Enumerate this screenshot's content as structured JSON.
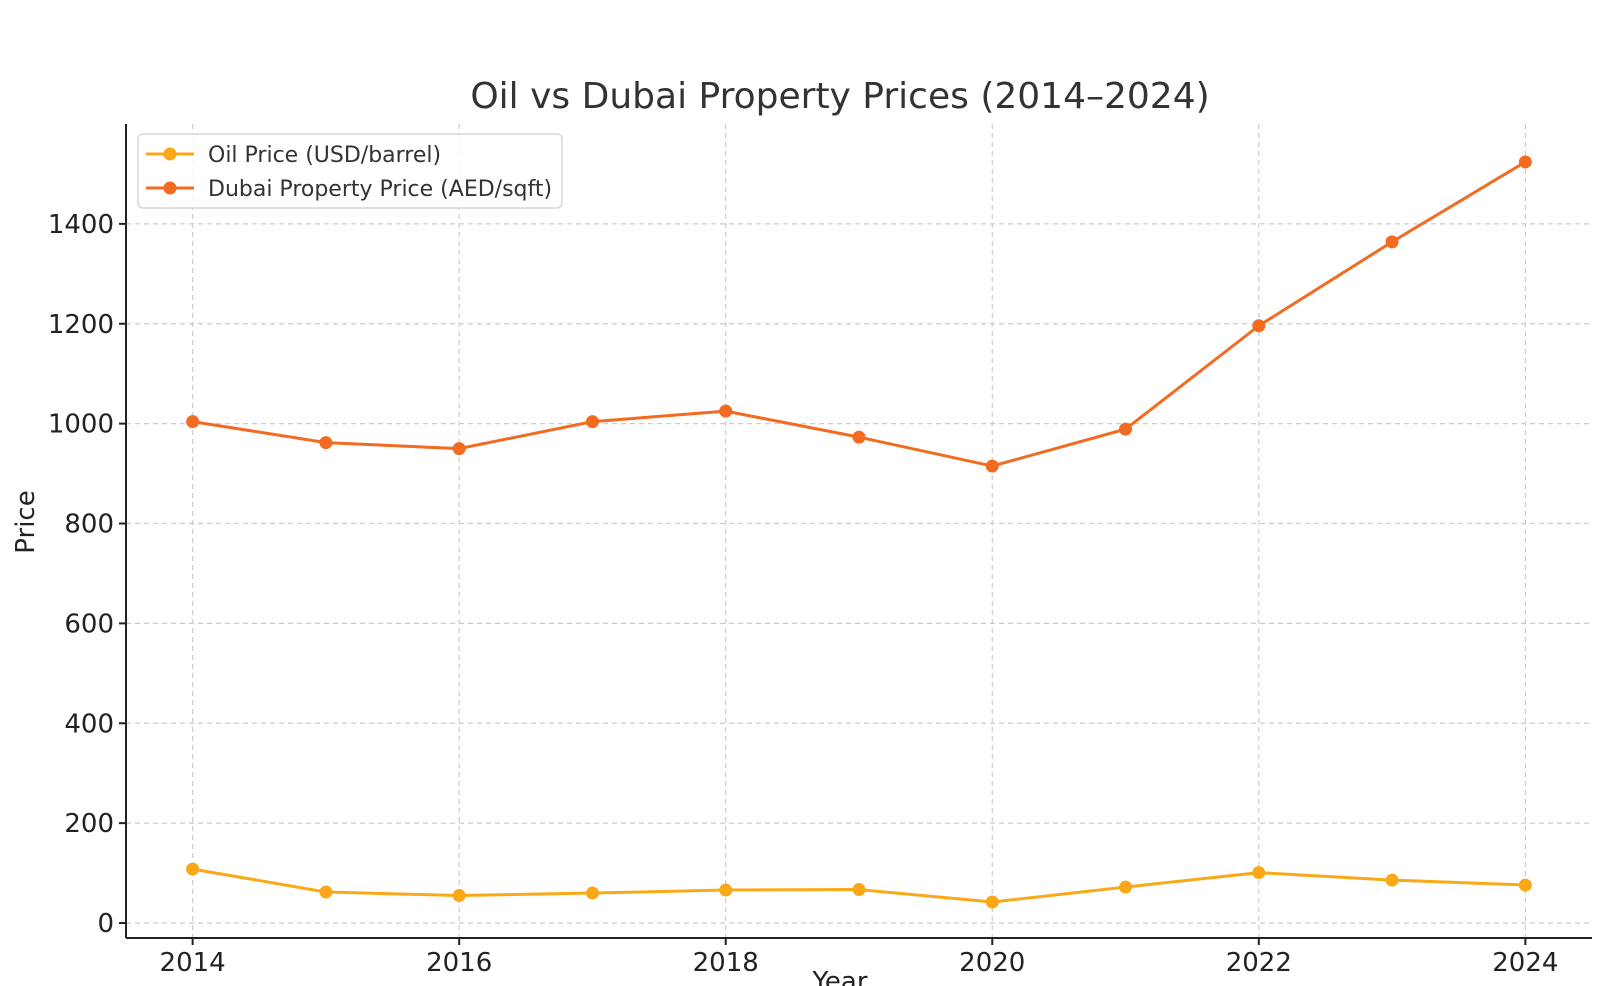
{
  "chart_data": {
    "type": "line",
    "title": "Oil vs Dubai Property Prices (2014–2024)",
    "xlabel": "Year",
    "ylabel": "Price",
    "x": [
      2014,
      2015,
      2016,
      2017,
      2018,
      2019,
      2020,
      2021,
      2022,
      2023,
      2024
    ],
    "x_ticks": [
      2014,
      2016,
      2018,
      2020,
      2022,
      2024
    ],
    "y_ticks": [
      0,
      200,
      400,
      600,
      800,
      1000,
      1200,
      1400
    ],
    "xlim": [
      2013.5,
      2024.5
    ],
    "ylim": [
      -30,
      1600
    ],
    "grid": true,
    "legend_position": "top-left",
    "series": [
      {
        "name": "Oil Price (USD/barrel)",
        "color": "#FBA818",
        "values": [
          108,
          62,
          55,
          60,
          66,
          67,
          42,
          72,
          101,
          86,
          76
        ]
      },
      {
        "name": "Dubai Property Price (AED/sqft)",
        "color": "#F26B21",
        "values": [
          1004,
          962,
          950,
          1004,
          1025,
          973,
          915,
          989,
          1196,
          1364,
          1524
        ]
      }
    ]
  }
}
